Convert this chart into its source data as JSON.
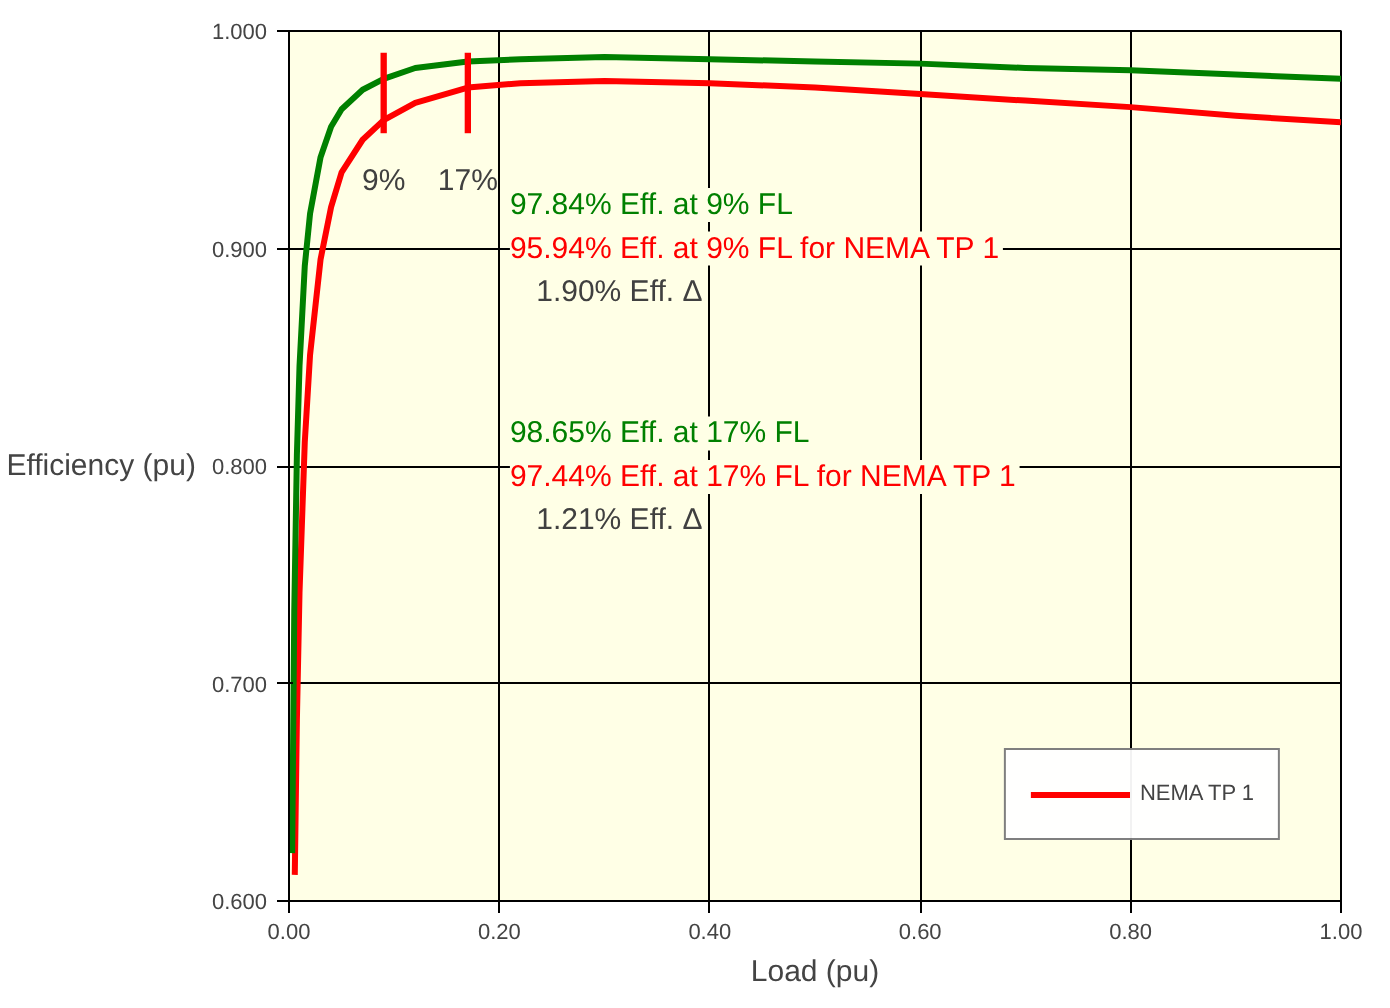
{
  "chart_data": {
    "type": "line",
    "xlabel": "Load (pu)",
    "ylabel": "Efficiency (pu)",
    "xlim": [
      0,
      1
    ],
    "ylim": [
      0.6,
      1.0
    ],
    "xticks": [
      {
        "value": 0,
        "label": "0.00"
      },
      {
        "value": 0.2,
        "label": "0.20"
      },
      {
        "value": 0.4,
        "label": "0.40"
      },
      {
        "value": 0.6,
        "label": "0.60"
      },
      {
        "value": 0.8,
        "label": "0.80"
      },
      {
        "value": 1,
        "label": "1.00"
      }
    ],
    "yticks": [
      {
        "value": 0.6,
        "label": "0.600"
      },
      {
        "value": 0.7,
        "label": "0.700"
      },
      {
        "value": 0.8,
        "label": "0.800"
      },
      {
        "value": 0.9,
        "label": "0.900"
      },
      {
        "value": 1.0,
        "label": "1.000"
      }
    ],
    "grid": true,
    "legend": "bottom right",
    "marker": "none",
    "line_style": "solid",
    "series": [
      {
        "name": "NEMA TP 1",
        "color": "#ff0000",
        "x": [
          0.0055,
          0.0075,
          0.01,
          0.015,
          0.02,
          0.03,
          0.04,
          0.05,
          0.07,
          0.09,
          0.12,
          0.17,
          0.22,
          0.3,
          0.4,
          0.5,
          0.6,
          0.7,
          0.8,
          0.9,
          1.0
        ],
        "values": [
          0.612,
          0.683,
          0.742,
          0.811,
          0.851,
          0.895,
          0.919,
          0.935,
          0.95,
          0.959,
          0.967,
          0.974,
          0.976,
          0.977,
          0.976,
          0.974,
          0.971,
          0.968,
          0.965,
          0.961,
          0.958
        ]
      },
      {
        "color": "#008000",
        "x": [
          0.003,
          0.005,
          0.0075,
          0.01,
          0.015,
          0.02,
          0.03,
          0.04,
          0.05,
          0.07,
          0.09,
          0.12,
          0.17,
          0.22,
          0.3,
          0.4,
          0.5,
          0.6,
          0.7,
          0.8,
          0.9,
          1.0
        ],
        "values": [
          0.622,
          0.733,
          0.805,
          0.846,
          0.892,
          0.916,
          0.942,
          0.956,
          0.964,
          0.973,
          0.978,
          0.983,
          0.986,
          0.987,
          0.988,
          0.987,
          0.986,
          0.985,
          0.983,
          0.982,
          0.98,
          0.978
        ]
      },
      {
        "type": "bar",
        "color": "#ff0000",
        "x": [
          0.09,
          0.17
        ],
        "base": [
          0.953,
          0.953
        ],
        "values": [
          0.037,
          0.037
        ]
      }
    ],
    "annotations": [
      {
        "text": "9%",
        "x": 0.09,
        "y": 0.953
      },
      {
        "text": "17%",
        "x": 0.17,
        "y": 0.953
      },
      "97.84% Eff. at 9% FL",
      "95.94% Eff. at 9% FL for NEMA TP 1",
      "1.90% Eff. Δ",
      "98.65% Eff. at 17% FL",
      "97.44% Eff. at 17% FL for NEMA TP 1",
      "1.21% Eff. Δ"
    ]
  }
}
